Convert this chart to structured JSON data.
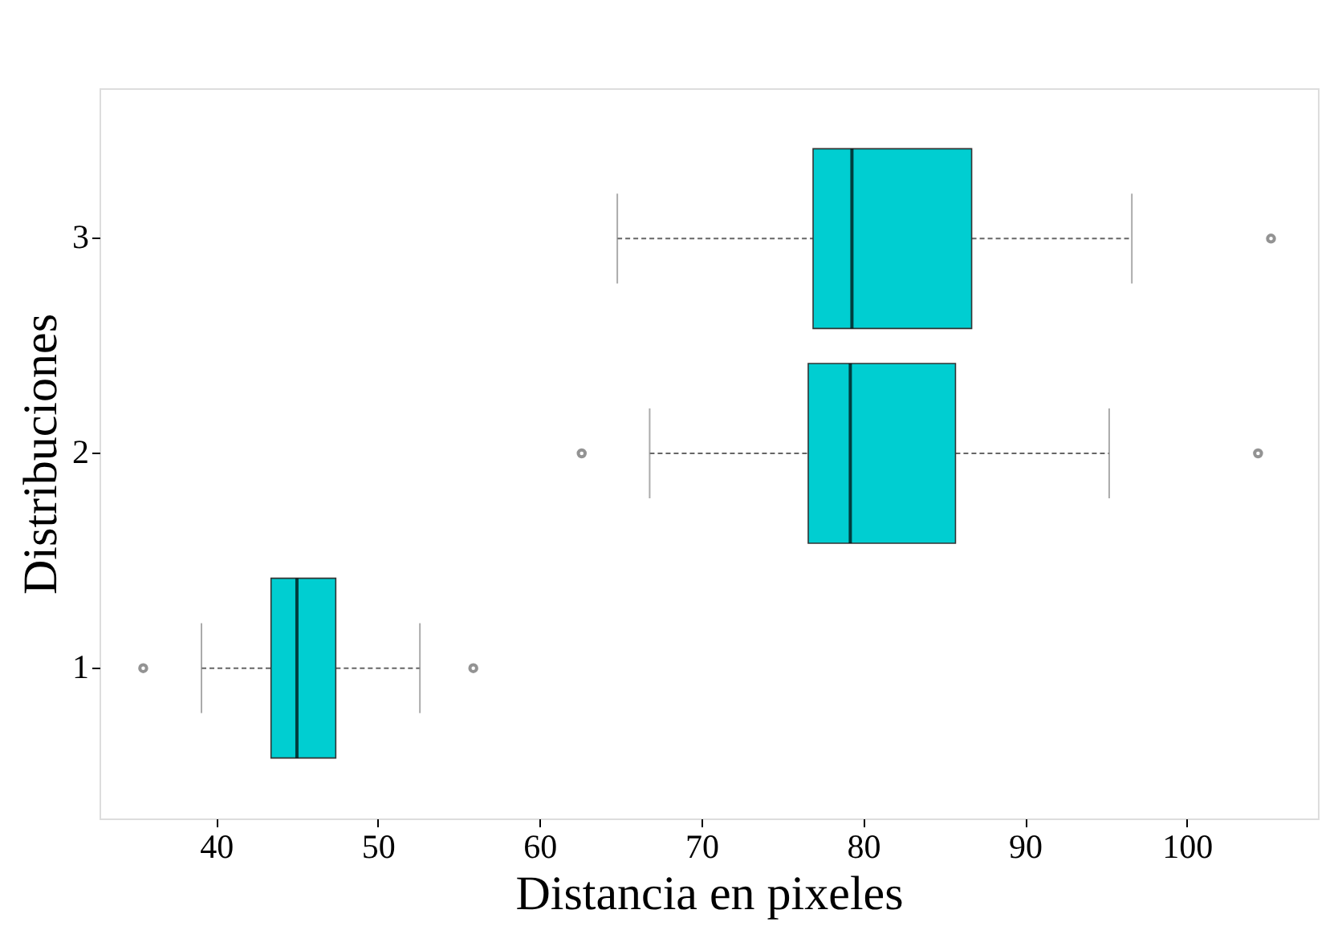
{
  "chart_data": {
    "type": "box",
    "orientation": "horizontal",
    "xlabel": "Distancia en pixeles",
    "ylabel": "Distribuciones",
    "categories": [
      "3",
      "2",
      "1"
    ],
    "xlim": [
      32.8,
      108.1
    ],
    "xticks": [
      40,
      50,
      60,
      70,
      80,
      90,
      100
    ],
    "grid": false,
    "color": "#00ced1",
    "boxes": [
      {
        "low": 64.8,
        "q1": 76.9,
        "median": 79.3,
        "q3": 86.7,
        "high": 96.6,
        "outliers": [
          105.2
        ]
      },
      {
        "low": 66.8,
        "q1": 76.6,
        "median": 79.2,
        "q3": 85.7,
        "high": 95.2,
        "outliers": [
          62.6,
          104.4
        ]
      },
      {
        "low": 39.1,
        "q1": 43.4,
        "median": 45.0,
        "q3": 47.4,
        "high": 52.6,
        "outliers": [
          35.5,
          55.9
        ]
      }
    ]
  }
}
